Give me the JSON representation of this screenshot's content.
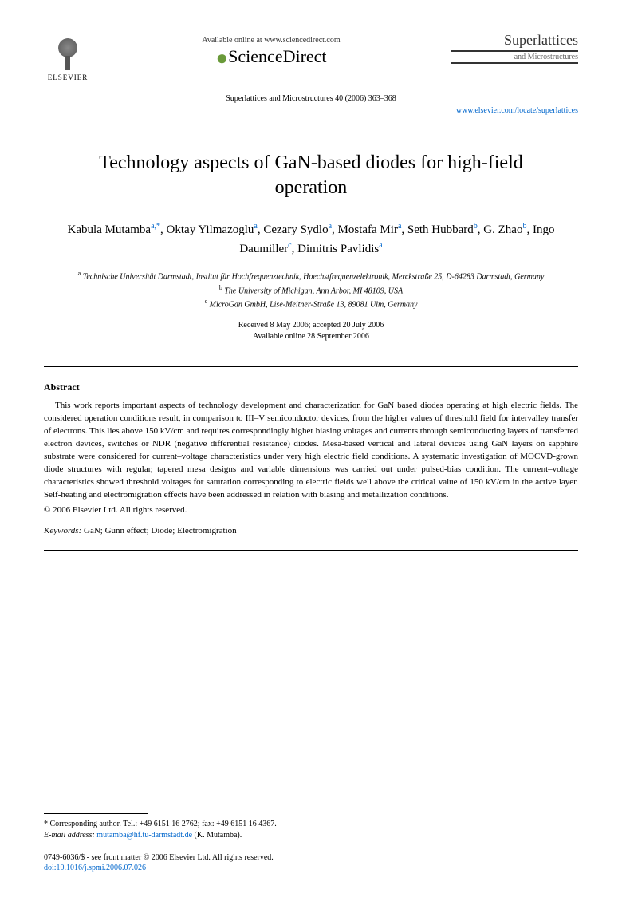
{
  "header": {
    "elsevier_label": "ELSEVIER",
    "available_text": "Available online at www.sciencedirect.com",
    "sciencedirect": "ScienceDirect",
    "journal_name": "Superlattices",
    "journal_sub": "and Microstructures",
    "citation": "Superlattices and Microstructures 40 (2006) 363–368",
    "journal_link": "www.elsevier.com/locate/superlattices"
  },
  "title": "Technology aspects of GaN-based diodes for high-field operation",
  "authors": [
    {
      "name": "Kabula Mutamba",
      "aff": "a,*"
    },
    {
      "name": "Oktay Yilmazoglu",
      "aff": "a"
    },
    {
      "name": "Cezary Sydlo",
      "aff": "a"
    },
    {
      "name": "Mostafa Mir",
      "aff": "a"
    },
    {
      "name": "Seth Hubbard",
      "aff": "b"
    },
    {
      "name": "G. Zhao",
      "aff": "b"
    },
    {
      "name": "Ingo Daumiller",
      "aff": "c"
    },
    {
      "name": "Dimitris Pavlidis",
      "aff": "a"
    }
  ],
  "affiliations": {
    "a": "Technische Universität Darmstadt, Institut für Hochfrequenztechnik, Hoechstfrequenzelektronik, Merckstraße 25, D-64283 Darmstadt, Germany",
    "b": "The University of Michigan, Ann Arbor, MI 48109, USA",
    "c": "MicroGan GmbH, Lise-Meitner-Straße 13, 89081 Ulm, Germany"
  },
  "dates": {
    "received": "Received 8 May 2006; accepted 20 July 2006",
    "online": "Available online 28 September 2006"
  },
  "abstract": {
    "heading": "Abstract",
    "body": "This work reports important aspects of technology development and characterization for GaN based diodes operating at high electric fields. The considered operation conditions result, in comparison to III–V semiconductor devices, from the higher values of threshold field for intervalley transfer of electrons. This lies above 150 kV/cm and requires correspondingly higher biasing voltages and currents through semiconducting layers of transferred electron devices, switches or NDR (negative differential resistance) diodes. Mesa-based vertical and lateral devices using GaN layers on sapphire substrate were considered for current–voltage characteristics under very high electric field conditions. A systematic investigation of MOCVD-grown diode structures with regular, tapered mesa designs and variable dimensions was carried out under pulsed-bias condition. The current–voltage characteristics showed threshold voltages for saturation corresponding to electric fields well above the critical value of 150 kV/cm in the active layer. Self-heating and electromigration effects have been addressed in relation with biasing and metallization conditions.",
    "copyright": "© 2006 Elsevier Ltd. All rights reserved."
  },
  "keywords": {
    "label": "Keywords:",
    "text": "GaN; Gunn effect; Diode; Electromigration"
  },
  "footer": {
    "corr_label": "* Corresponding author. Tel.: +49 6151 16 2762; fax: +49 6151 16 4367.",
    "email_label": "E-mail address:",
    "email": "mutamba@hf.tu-darmstadt.de",
    "email_name": "(K. Mutamba).",
    "issn": "0749-6036/$ - see front matter © 2006 Elsevier Ltd. All rights reserved.",
    "doi": "doi:10.1016/j.spmi.2006.07.026"
  },
  "colors": {
    "link": "#0066cc",
    "text": "#000000",
    "bg": "#ffffff"
  }
}
